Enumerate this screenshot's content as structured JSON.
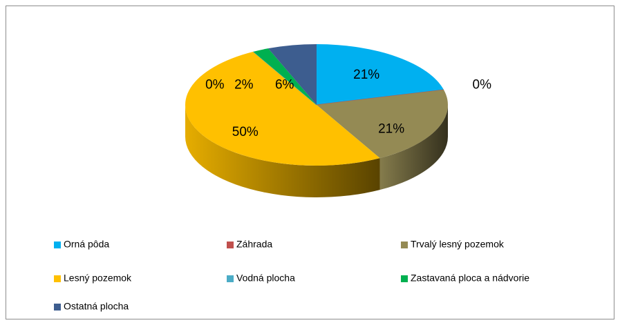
{
  "chart_data": {
    "type": "pie3d",
    "categories": [
      "Orná pôda",
      "Záhrada",
      "Trvalý lesný pozemok",
      "Lesný pozemok",
      "Vodná plocha",
      "Zastavaná ploca a nádvorie",
      "Ostatná plocha"
    ],
    "values": [
      21,
      0,
      21,
      50,
      0,
      2,
      6
    ],
    "value_labels": [
      "21%",
      "0%",
      "21%",
      "50%",
      "0%",
      "2%",
      "6%"
    ],
    "colors": [
      "#00b0f0",
      "#c0504d",
      "#948a54",
      "#ffc000",
      "#4bacc6",
      "#00b050",
      "#3d5d8f"
    ],
    "legend": "bottom"
  }
}
